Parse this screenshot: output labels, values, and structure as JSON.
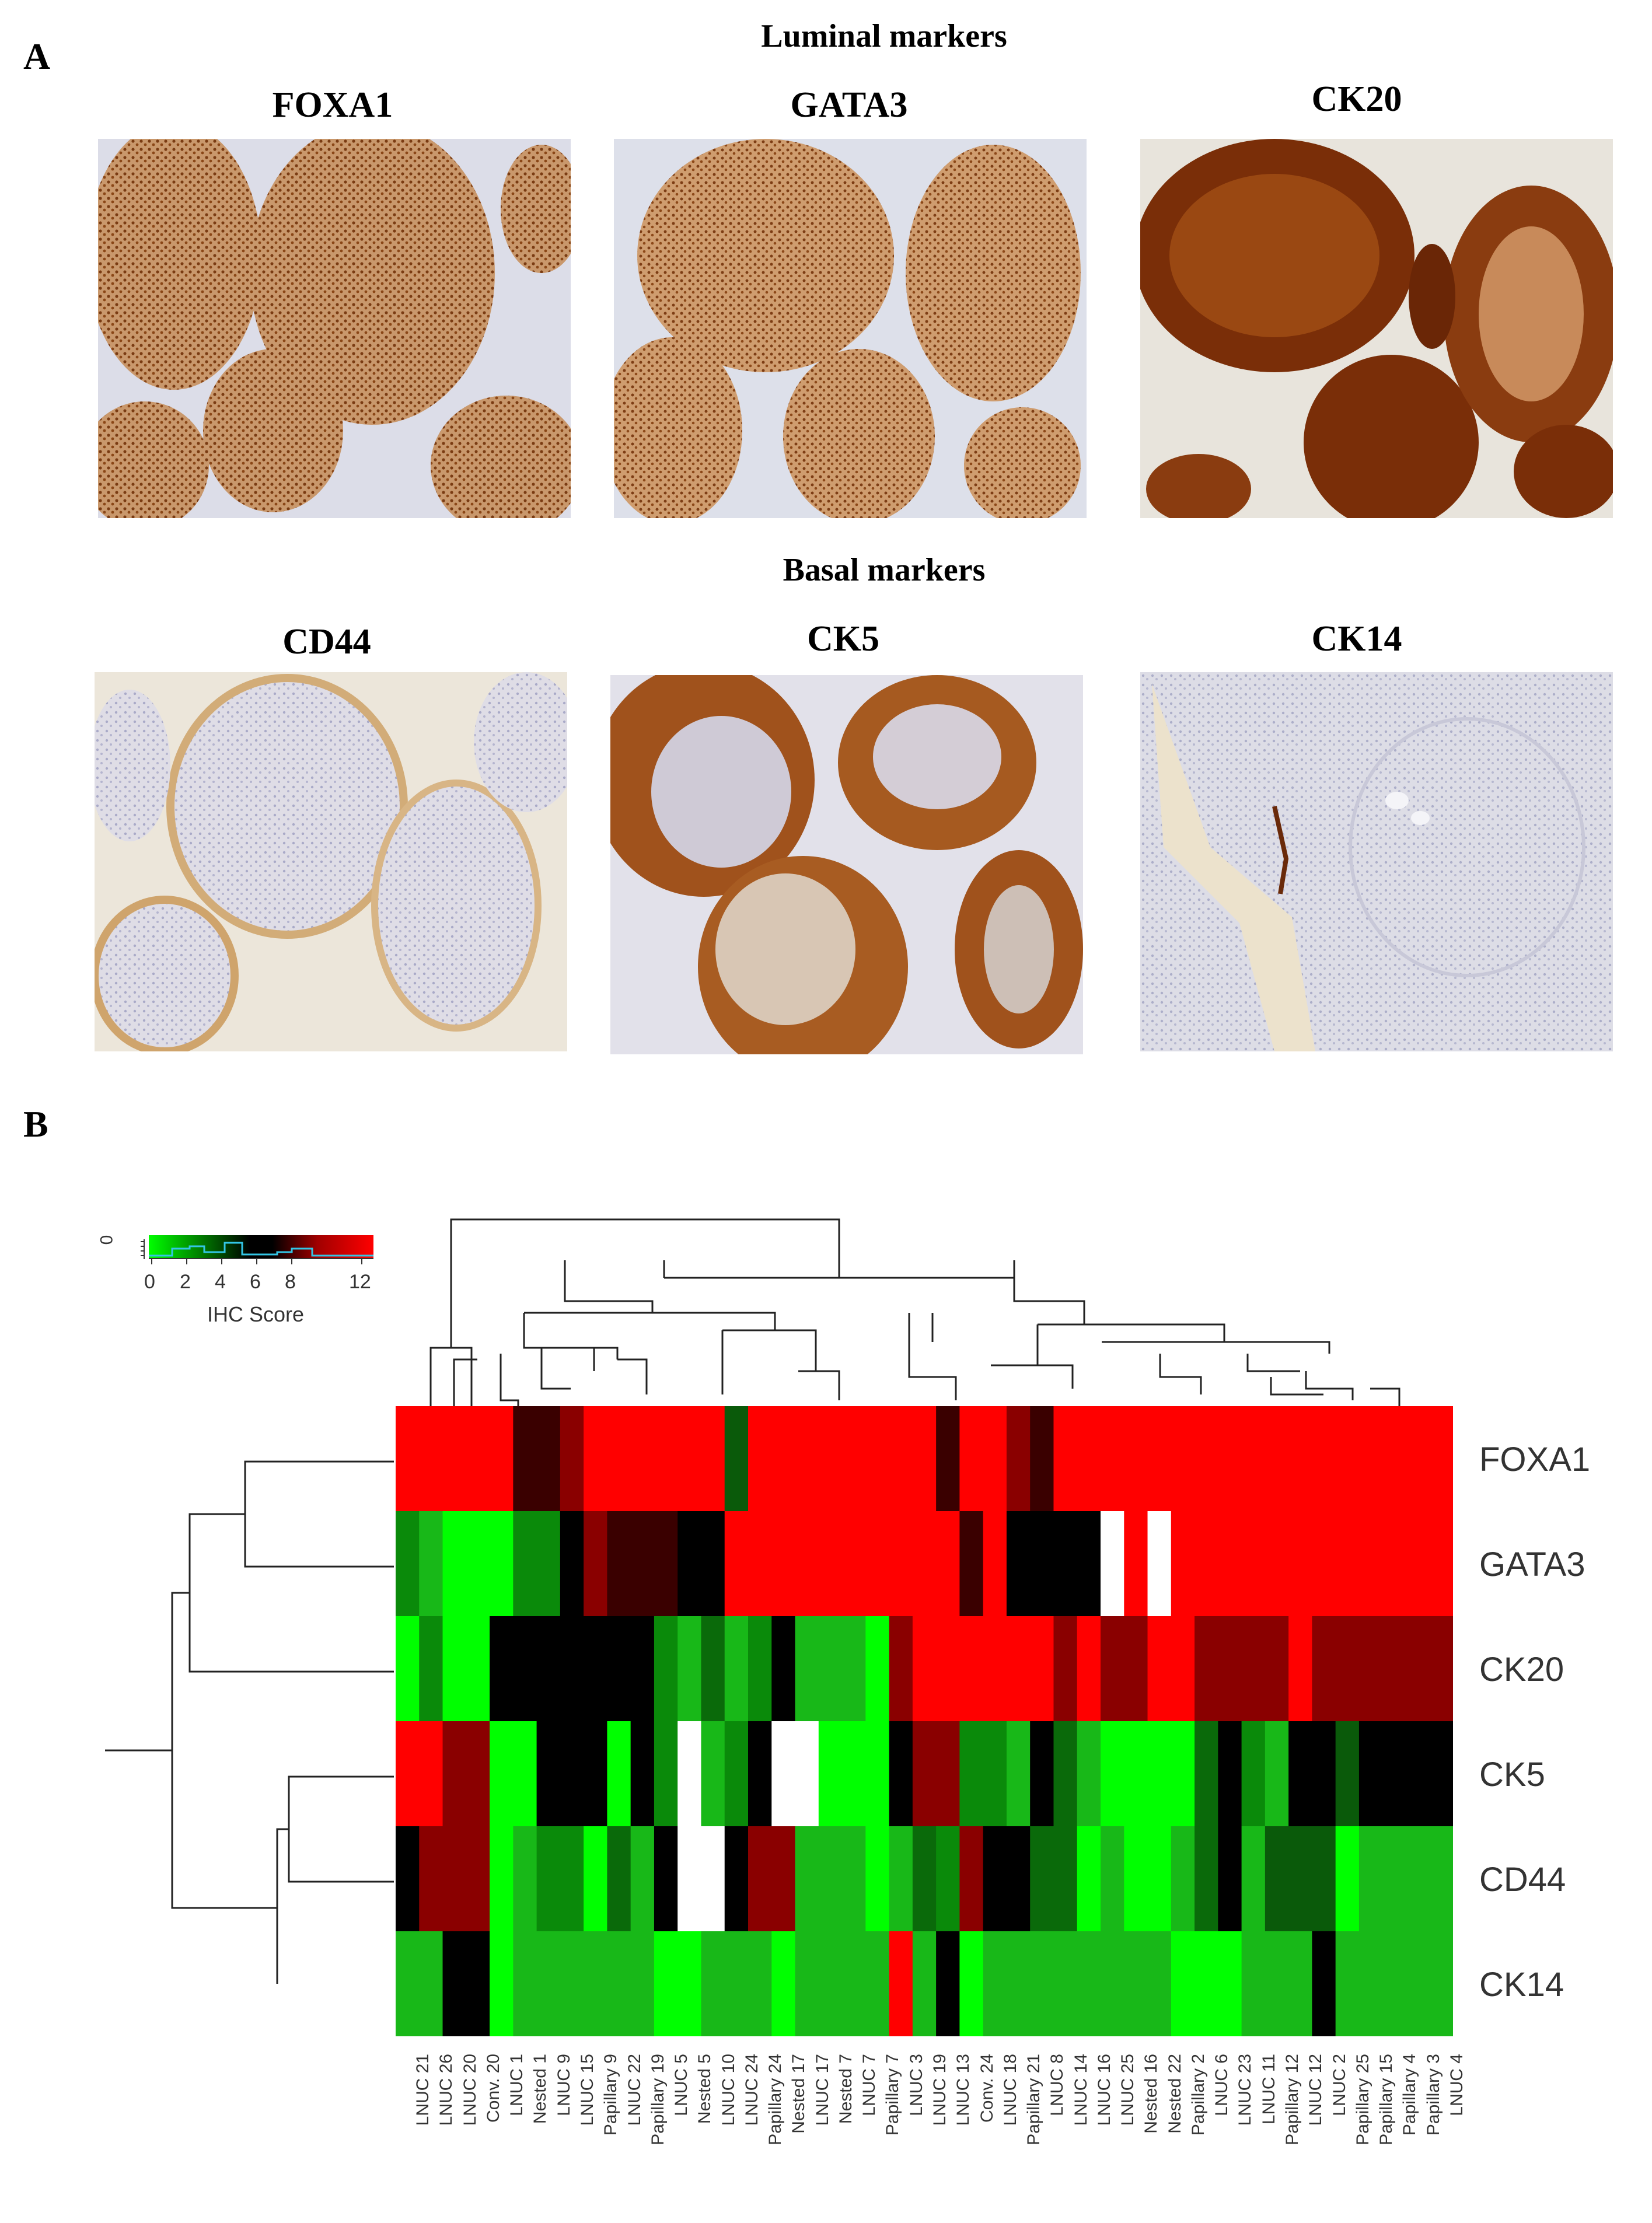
{
  "panel_a": {
    "letter": "A",
    "luminal_title": "Luminal markers",
    "basal_title": "Basal markers",
    "luminal_markers": [
      "FOXA1",
      "GATA3",
      "CK20"
    ],
    "basal_markers": [
      "CD44",
      "CK5",
      "CK14"
    ]
  },
  "panel_b": {
    "letter": "B",
    "legend": {
      "title": "IHC Score",
      "ticks": [
        "0",
        "2",
        "4",
        "6",
        "8",
        "12"
      ],
      "density_axis_label": "0",
      "colors": [
        "#00ff00",
        "#000000",
        "#ff0000"
      ]
    },
    "heatmap": {
      "rows": [
        "FOXA1",
        "GATA3",
        "CK20",
        "CK5",
        "CD44",
        "CK14"
      ],
      "columns": [
        "LNUC 21",
        "LNUC 26",
        "LNUC 20",
        "Conv. 20",
        "LNUC 1",
        "Nested 1",
        "LNUC 9",
        "LNUC 15",
        "Papillary 9",
        "LNUC 22",
        "Papillary 19",
        "LNUC 5",
        "Nested 5",
        "LNUC 10",
        "LNUC 24",
        "Papillary 24",
        "Nested 17",
        "LNUC 17",
        "Nested 7",
        "LNUC 7",
        "Papillary 7",
        "LNUC 3",
        "LNUC 19",
        "LNUC 13",
        "Conv. 24",
        "LNUC 18",
        "Papillary 21",
        "LNUC 8",
        "LNUC 14",
        "LNUC 16",
        "LNUC 25",
        "Nested 16",
        "Nested 22",
        "Papillary 2",
        "LNUC 6",
        "LNUC 23",
        "LNUC 11",
        "Papillary 12",
        "LNUC 12",
        "LNUC 2",
        "Papillary 25",
        "Papillary 15",
        "Papillary 4",
        "Papillary 3",
        "LNUC 4"
      ],
      "matrix": [
        [
          "#ff0000",
          "#ff0000",
          "#ff0000",
          "#ff0000",
          "#ff0000",
          "#3a0000",
          "#3a0000",
          "#8a0000",
          "#ff0000",
          "#ff0000",
          "#ff0000",
          "#ff0000",
          "#ff0000",
          "#ff0000",
          "#0a5a0a",
          "#ff0000",
          "#ff0000",
          "#ff0000",
          "#ff0000",
          "#ff0000",
          "#ff0000",
          "#ff0000",
          "#ff0000",
          "#3a0000",
          "#ff0000",
          "#ff0000",
          "#8a0000",
          "#3a0000",
          "#ff0000",
          "#ff0000",
          "#ff0000",
          "#ff0000",
          "#ff0000",
          "#ff0000",
          "#ff0000",
          "#ff0000",
          "#ff0000",
          "#ff0000",
          "#ff0000",
          "#ff0000",
          "#ff0000",
          "#ff0000",
          "#ff0000",
          "#ff0000",
          "#ff0000"
        ],
        [
          "#0a8a0a",
          "#18b818",
          "#00ff00",
          "#00ff00",
          "#00ff00",
          "#0a8a0a",
          "#0a8a0a",
          "#000000",
          "#8a0000",
          "#3a0000",
          "#3a0000",
          "#3a0000",
          "#000000",
          "#000000",
          "#ff0000",
          "#ff0000",
          "#ff0000",
          "#ff0000",
          "#ff0000",
          "#ff0000",
          "#ff0000",
          "#ff0000",
          "#ff0000",
          "#ff0000",
          "#3a0000",
          "#ff0000",
          "#000000",
          "#000000",
          "#000000",
          "#000000",
          "#ffffff",
          "#ff0000",
          "#ffffff",
          "#ff0000",
          "#ff0000",
          "#ff0000",
          "#ff0000",
          "#ff0000",
          "#ff0000",
          "#ff0000",
          "#ff0000",
          "#ff0000",
          "#ff0000",
          "#ff0000",
          "#ff0000"
        ],
        [
          "#00ff00",
          "#0a8a0a",
          "#00ff00",
          "#00ff00",
          "#000000",
          "#000000",
          "#000000",
          "#000000",
          "#000000",
          "#000000",
          "#000000",
          "#0a8a0a",
          "#18b818",
          "#0a6a0a",
          "#18b818",
          "#0a8a0a",
          "#000000",
          "#18b818",
          "#18b818",
          "#18b818",
          "#00ff00",
          "#8a0000",
          "#ff0000",
          "#ff0000",
          "#ff0000",
          "#ff0000",
          "#ff0000",
          "#ff0000",
          "#8a0000",
          "#ff0000",
          "#8a0000",
          "#8a0000",
          "#ff0000",
          "#ff0000",
          "#8a0000",
          "#8a0000",
          "#8a0000",
          "#8a0000",
          "#ff0000",
          "#8a0000",
          "#8a0000",
          "#8a0000",
          "#8a0000",
          "#8a0000",
          "#8a0000"
        ],
        [
          "#ff0000",
          "#ff0000",
          "#8a0000",
          "#8a0000",
          "#00ff00",
          "#00ff00",
          "#000000",
          "#000000",
          "#000000",
          "#00ff00",
          "#000000",
          "#0a8a0a",
          "#ffffff",
          "#18b818",
          "#0a8a0a",
          "#000000",
          "#ffffff",
          "#ffffff",
          "#00ff00",
          "#00ff00",
          "#00ff00",
          "#000000",
          "#8a0000",
          "#8a0000",
          "#0a8a0a",
          "#0a8a0a",
          "#18b818",
          "#000000",
          "#0a6a0a",
          "#18b818",
          "#00ff00",
          "#00ff00",
          "#00ff00",
          "#00ff00",
          "#0a6a0a",
          "#000000",
          "#0a8a0a",
          "#18b818",
          "#000000",
          "#000000",
          "#0a5a0a",
          "#000000",
          "#000000",
          "#000000",
          "#000000"
        ],
        [
          "#000000",
          "#8a0000",
          "#8a0000",
          "#8a0000",
          "#00ff00",
          "#18b818",
          "#0a8a0a",
          "#0a8a0a",
          "#00ff00",
          "#0a6a0a",
          "#18b818",
          "#000000",
          "#ffffff",
          "#ffffff",
          "#000000",
          "#8a0000",
          "#8a0000",
          "#18b818",
          "#18b818",
          "#18b818",
          "#00ff00",
          "#18b818",
          "#0a6a0a",
          "#0a8a0a",
          "#8a0000",
          "#000000",
          "#000000",
          "#0a6a0a",
          "#0a6a0a",
          "#00ff00",
          "#18b818",
          "#00ff00",
          "#00ff00",
          "#18b818",
          "#0a6a0a",
          "#000000",
          "#18b818",
          "#0a5a0a",
          "#0a5a0a",
          "#0a5a0a",
          "#00ff00",
          "#18b818",
          "#18b818",
          "#18b818",
          "#18b818"
        ],
        [
          "#18b818",
          "#18b818",
          "#000000",
          "#000000",
          "#00ff00",
          "#18b818",
          "#18b818",
          "#18b818",
          "#18b818",
          "#18b818",
          "#18b818",
          "#00ff00",
          "#00ff00",
          "#18b818",
          "#18b818",
          "#18b818",
          "#00ff00",
          "#18b818",
          "#18b818",
          "#18b818",
          "#18b818",
          "#ff0000",
          "#18b818",
          "#000000",
          "#00ff00",
          "#18b818",
          "#18b818",
          "#18b818",
          "#18b818",
          "#18b818",
          "#18b818",
          "#18b818",
          "#18b818",
          "#00ff00",
          "#00ff00",
          "#00ff00",
          "#18b818",
          "#18b818",
          "#18b818",
          "#000000",
          "#18b818",
          "#18b818",
          "#18b818",
          "#18b818",
          "#18b818"
        ]
      ]
    }
  }
}
